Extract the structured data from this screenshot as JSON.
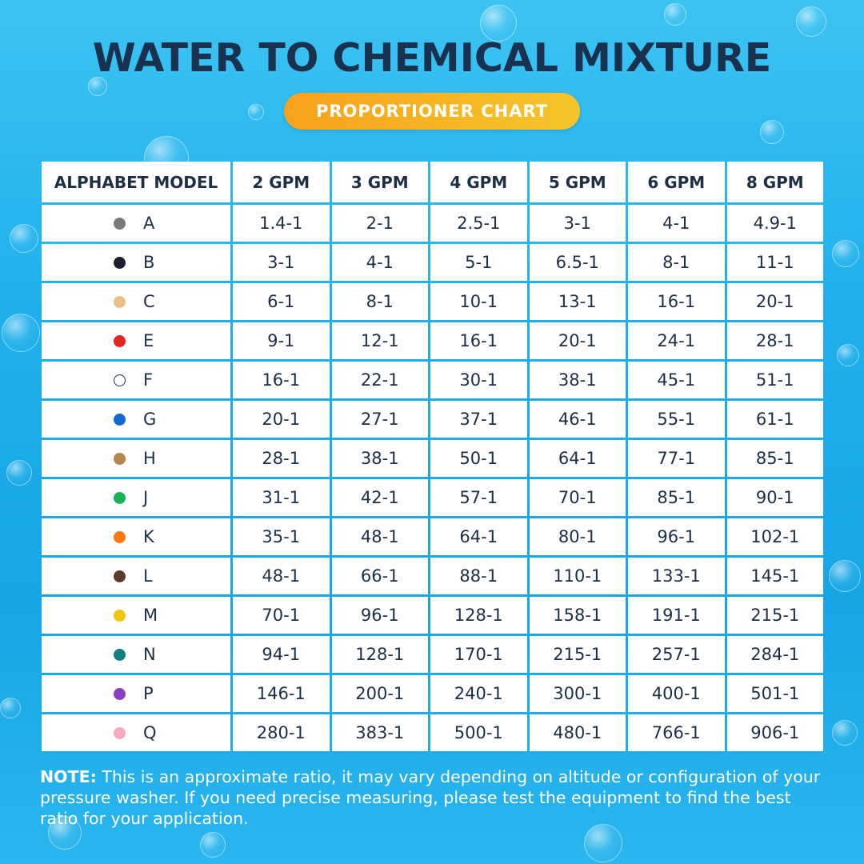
{
  "title": "WATER TO CHEMICAL MIXTURE",
  "subtitle": "PROPORTIONER CHART",
  "table": {
    "headers": [
      "ALPHABET MODEL",
      "2 GPM",
      "3 GPM",
      "4 GPM",
      "5 GPM",
      "6 GPM",
      "8 GPM"
    ],
    "rows": [
      {
        "model": "A",
        "color": "#7a7a7a",
        "values": [
          "1.4-1",
          "2-1",
          "2.5-1",
          "3-1",
          "4-1",
          "4.9-1"
        ]
      },
      {
        "model": "B",
        "color": "#1c1f2e",
        "values": [
          "3-1",
          "4-1",
          "5-1",
          "6.5-1",
          "8-1",
          "11-1"
        ]
      },
      {
        "model": "C",
        "color": "#e9bd86",
        "values": [
          "6-1",
          "8-1",
          "10-1",
          "13-1",
          "16-1",
          "20-1"
        ]
      },
      {
        "model": "E",
        "color": "#e0261f",
        "values": [
          "9-1",
          "12-1",
          "16-1",
          "20-1",
          "24-1",
          "28-1"
        ]
      },
      {
        "model": "F",
        "color": "#ffffff",
        "values": [
          "16-1",
          "22-1",
          "30-1",
          "38-1",
          "45-1",
          "51-1"
        ]
      },
      {
        "model": "G",
        "color": "#1368d0",
        "values": [
          "20-1",
          "27-1",
          "37-1",
          "46-1",
          "55-1",
          "61-1"
        ]
      },
      {
        "model": "H",
        "color": "#b7864f",
        "values": [
          "28-1",
          "38-1",
          "50-1",
          "64-1",
          "77-1",
          "85-1"
        ]
      },
      {
        "model": "J",
        "color": "#1db157",
        "values": [
          "31-1",
          "42-1",
          "57-1",
          "70-1",
          "85-1",
          "90-1"
        ]
      },
      {
        "model": "K",
        "color": "#f57a17",
        "values": [
          "35-1",
          "48-1",
          "64-1",
          "80-1",
          "96-1",
          "102-1"
        ]
      },
      {
        "model": "L",
        "color": "#5b3a29",
        "values": [
          "48-1",
          "66-1",
          "88-1",
          "110-1",
          "133-1",
          "145-1"
        ]
      },
      {
        "model": "M",
        "color": "#efc413",
        "values": [
          "70-1",
          "96-1",
          "128-1",
          "158-1",
          "191-1",
          "215-1"
        ]
      },
      {
        "model": "N",
        "color": "#137f80",
        "values": [
          "94-1",
          "128-1",
          "170-1",
          "215-1",
          "257-1",
          "284-1"
        ]
      },
      {
        "model": "P",
        "color": "#8a3fc0",
        "values": [
          "146-1",
          "200-1",
          "240-1",
          "300-1",
          "400-1",
          "501-1"
        ]
      },
      {
        "model": "Q",
        "color": "#f6a9bd",
        "values": [
          "280-1",
          "383-1",
          "500-1",
          "480-1",
          "766-1",
          "906-1"
        ]
      }
    ]
  },
  "note": {
    "label": "NOTE:",
    "text": " This is an approximate ratio, it may vary depending on altitude or configuration of your pressure washer. If you need precise measuring, please test the equipment to find the best ratio for your application."
  },
  "colors": {
    "background": "#1fb0ec",
    "title": "#17314f",
    "pill_start": "#f7a21b",
    "pill_end": "#f6c52a"
  }
}
